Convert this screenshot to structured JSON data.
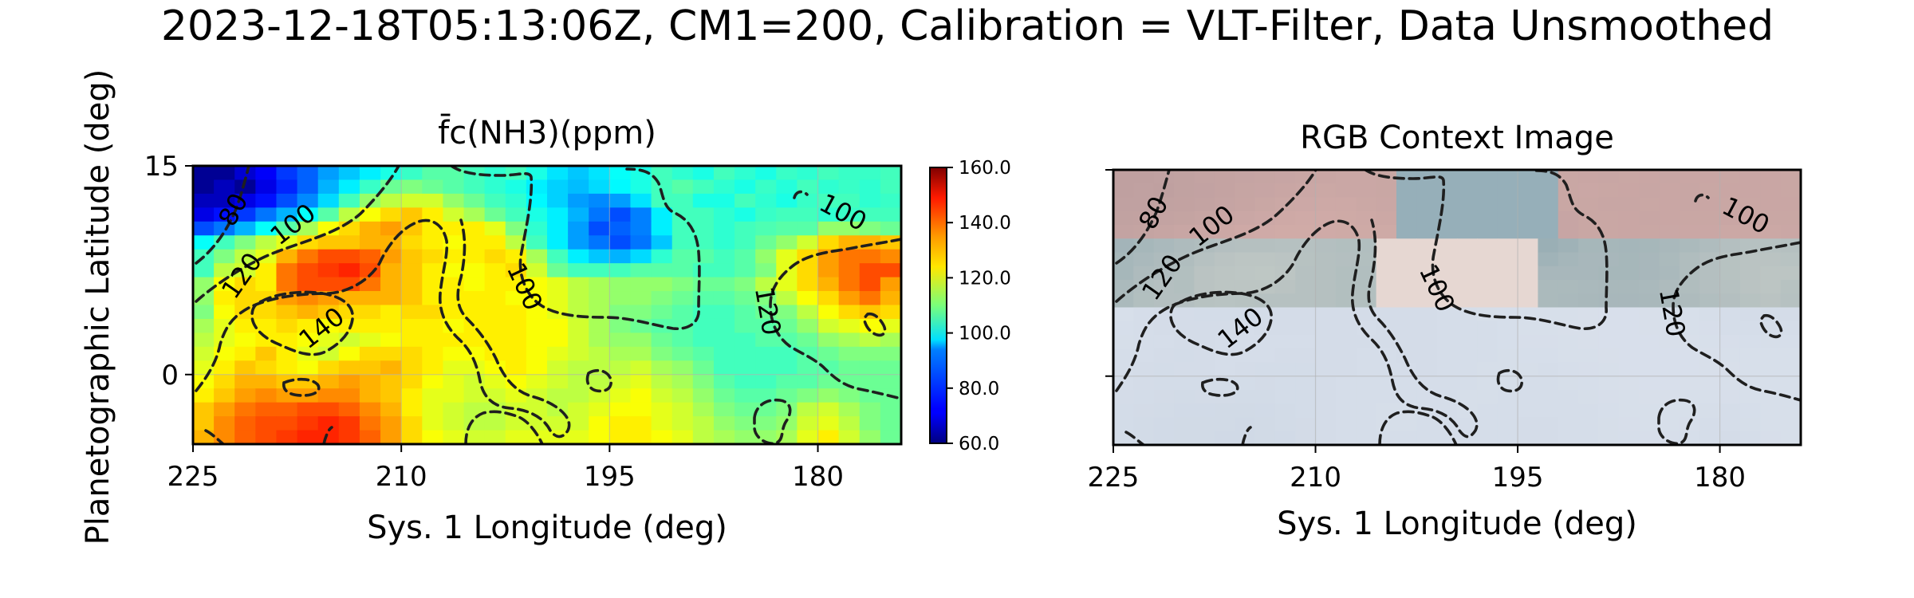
{
  "figure": {
    "title": "2023-12-18T05:13:06Z, CM1=200, Calibration = VLT-Filter, Data Unsmoothed",
    "ylabel": "Planetographic Latitude (deg)"
  },
  "chart_data": [
    {
      "type": "heatmap",
      "title": "f̄c(NH3)(ppm)",
      "xlabel": "Sys. 1 Longitude (deg)",
      "ylabel": "Planetographic Latitude (deg)",
      "xlim": [
        225,
        174
      ],
      "ylim": [
        -5,
        15
      ],
      "xticks": [
        225,
        210,
        195,
        180
      ],
      "yticks": [
        0,
        15
      ],
      "grid": true,
      "colorbar": {
        "colormap": "jet",
        "range": [
          60,
          160
        ],
        "ticks": [
          "160.0",
          "140.0",
          "120.0",
          "100.0",
          "80.0",
          "60.0"
        ]
      },
      "contours": {
        "levels": [
          80,
          100,
          120,
          140
        ],
        "style": "dashed",
        "color": "#1f1f1f"
      },
      "cells": {
        "lon_start": 225,
        "lon_step": -1.5,
        "lat_start": 15,
        "lat_step": -1.0,
        "rows": [
          [
            62,
            62,
            68,
            72,
            78,
            82,
            88,
            92,
            96,
            100,
            103,
            106,
            106,
            104,
            102,
            104,
            100,
            95,
            92,
            95,
            98,
            100,
            104,
            102,
            100,
            104,
            102,
            100,
            103,
            102,
            104,
            103,
            103,
            104,
            104
          ],
          [
            62,
            66,
            62,
            70,
            76,
            82,
            90,
            96,
            103,
            108,
            110,
            108,
            106,
            104,
            102,
            100,
            96,
            93,
            91,
            94,
            97,
            100,
            104,
            106,
            104,
            102,
            100,
            103,
            101,
            104,
            102,
            103,
            102,
            104,
            103
          ],
          [
            66,
            66,
            70,
            74,
            80,
            86,
            94,
            104,
            112,
            116,
            118,
            118,
            112,
            108,
            104,
            102,
            97,
            93,
            88,
            86,
            88,
            95,
            104,
            104,
            100,
            100,
            104,
            102,
            100,
            103,
            104,
            104,
            102,
            103,
            104
          ],
          [
            70,
            74,
            78,
            84,
            90,
            98,
            106,
            116,
            122,
            126,
            128,
            124,
            118,
            114,
            108,
            104,
            100,
            96,
            90,
            84,
            80,
            85,
            96,
            104,
            104,
            102,
            100,
            103,
            104,
            104,
            102,
            103,
            104,
            104,
            103
          ],
          [
            80,
            84,
            90,
            98,
            106,
            114,
            122,
            126,
            130,
            132,
            128,
            124,
            124,
            124,
            120,
            110,
            102,
            96,
            88,
            80,
            82,
            85,
            96,
            104,
            104,
            102,
            104,
            105,
            106,
            106,
            112,
            112,
            110,
            108,
            106
          ],
          [
            98,
            104,
            110,
            116,
            120,
            126,
            128,
            128,
            130,
            130,
            126,
            124,
            122,
            124,
            124,
            116,
            104,
            96,
            88,
            84,
            80,
            84,
            92,
            104,
            104,
            102,
            104,
            108,
            112,
            118,
            126,
            130,
            130,
            128,
            124
          ],
          [
            104,
            110,
            116,
            120,
            130,
            136,
            140,
            140,
            138,
            132,
            128,
            126,
            124,
            124,
            126,
            124,
            114,
            104,
            96,
            92,
            90,
            94,
            102,
            106,
            106,
            104,
            106,
            112,
            120,
            126,
            132,
            136,
            136,
            134,
            128
          ],
          [
            104,
            116,
            118,
            124,
            136,
            140,
            142,
            144,
            140,
            130,
            128,
            124,
            122,
            122,
            124,
            126,
            118,
            108,
            104,
            104,
            104,
            106,
            106,
            106,
            104,
            104,
            106,
            110,
            120,
            126,
            132,
            136,
            140,
            140,
            130
          ],
          [
            112,
            122,
            126,
            124,
            136,
            140,
            140,
            140,
            136,
            130,
            128,
            124,
            124,
            122,
            124,
            124,
            122,
            120,
            116,
            114,
            112,
            112,
            112,
            110,
            108,
            108,
            110,
            116,
            120,
            126,
            130,
            136,
            140,
            132,
            130
          ],
          [
            112,
            124,
            126,
            126,
            132,
            134,
            132,
            130,
            130,
            130,
            128,
            124,
            124,
            124,
            124,
            122,
            122,
            120,
            116,
            114,
            112,
            112,
            110,
            108,
            106,
            106,
            108,
            110,
            116,
            122,
            126,
            132,
            136,
            130,
            126
          ],
          [
            110,
            122,
            126,
            126,
            128,
            130,
            128,
            126,
            126,
            124,
            126,
            126,
            124,
            124,
            124,
            124,
            122,
            120,
            116,
            114,
            110,
            110,
            108,
            106,
            104,
            104,
            106,
            108,
            110,
            116,
            122,
            126,
            128,
            126,
            122
          ],
          [
            114,
            120,
            124,
            124,
            126,
            124,
            122,
            124,
            124,
            124,
            124,
            124,
            122,
            124,
            124,
            124,
            122,
            122,
            118,
            114,
            110,
            108,
            106,
            106,
            104,
            104,
            106,
            106,
            108,
            112,
            118,
            120,
            122,
            120,
            118
          ],
          [
            116,
            120,
            122,
            124,
            124,
            122,
            120,
            118,
            120,
            122,
            124,
            124,
            124,
            124,
            124,
            124,
            122,
            122,
            118,
            114,
            112,
            112,
            108,
            106,
            104,
            104,
            104,
            106,
            106,
            108,
            112,
            114,
            116,
            114,
            114
          ],
          [
            118,
            122,
            124,
            128,
            124,
            120,
            118,
            122,
            126,
            126,
            126,
            124,
            122,
            122,
            124,
            124,
            122,
            120,
            118,
            116,
            114,
            114,
            110,
            108,
            106,
            104,
            104,
            104,
            104,
            106,
            108,
            110,
            110,
            110,
            110
          ],
          [
            120,
            124,
            128,
            126,
            124,
            122,
            126,
            128,
            128,
            130,
            126,
            124,
            120,
            120,
            122,
            124,
            122,
            118,
            116,
            116,
            116,
            118,
            114,
            112,
            108,
            104,
            104,
            104,
            104,
            106,
            106,
            108,
            108,
            108,
            108
          ],
          [
            122,
            126,
            130,
            130,
            128,
            128,
            130,
            132,
            130,
            128,
            126,
            122,
            120,
            118,
            120,
            122,
            120,
            118,
            116,
            116,
            118,
            120,
            116,
            114,
            110,
            106,
            104,
            104,
            106,
            106,
            108,
            108,
            108,
            108,
            108
          ],
          [
            124,
            128,
            132,
            134,
            132,
            132,
            134,
            134,
            130,
            128,
            124,
            120,
            120,
            118,
            118,
            120,
            118,
            116,
            116,
            118,
            120,
            122,
            118,
            116,
            112,
            108,
            106,
            106,
            108,
            110,
            112,
            110,
            108,
            108,
            108
          ],
          [
            128,
            132,
            136,
            138,
            138,
            140,
            140,
            138,
            134,
            130,
            124,
            120,
            118,
            116,
            116,
            118,
            118,
            116,
            118,
            120,
            122,
            122,
            120,
            118,
            114,
            110,
            108,
            108,
            110,
            116,
            118,
            114,
            110,
            108,
            108
          ],
          [
            128,
            134,
            138,
            140,
            140,
            142,
            144,
            142,
            136,
            132,
            126,
            120,
            118,
            116,
            116,
            118,
            118,
            118,
            118,
            122,
            124,
            124,
            120,
            118,
            116,
            112,
            110,
            110,
            112,
            118,
            120,
            116,
            110,
            108,
            108
          ],
          [
            130,
            134,
            138,
            140,
            142,
            144,
            144,
            142,
            138,
            132,
            126,
            122,
            120,
            118,
            118,
            120,
            120,
            120,
            120,
            122,
            124,
            124,
            122,
            120,
            116,
            114,
            112,
            112,
            114,
            120,
            124,
            118,
            112,
            108,
            108
          ]
        ]
      }
    },
    {
      "type": "image",
      "title": "RGB Context Image",
      "xlabel": "Sys. 1 Longitude (deg)",
      "xlim": [
        225,
        174
      ],
      "ylim": [
        -5,
        15
      ],
      "xticks": [
        225,
        210,
        195,
        180
      ],
      "yticks": [
        0,
        15
      ],
      "grid": true,
      "contours": {
        "levels": [
          80,
          100,
          120,
          140
        ],
        "style": "dashed",
        "color": "#1f1f1f"
      }
    }
  ]
}
